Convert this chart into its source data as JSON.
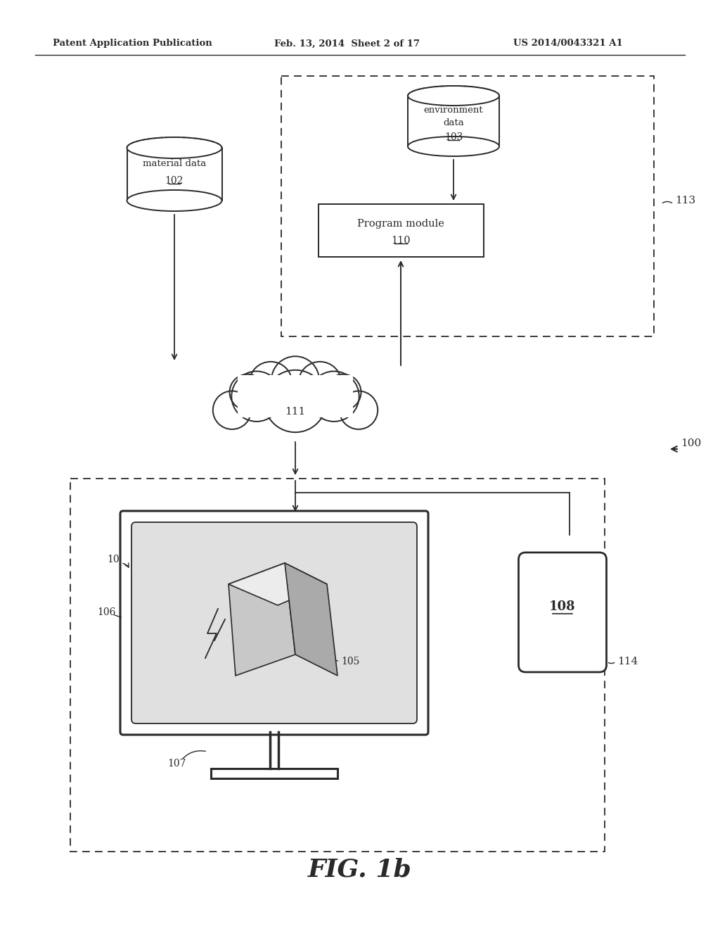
{
  "bg_color": "#ffffff",
  "line_color": "#2a2a2a",
  "header_left": "Patent Application Publication",
  "header_mid": "Feb. 13, 2014  Sheet 2 of 17",
  "header_right": "US 2014/0043321 A1",
  "fig_label": "FIG. 1b"
}
